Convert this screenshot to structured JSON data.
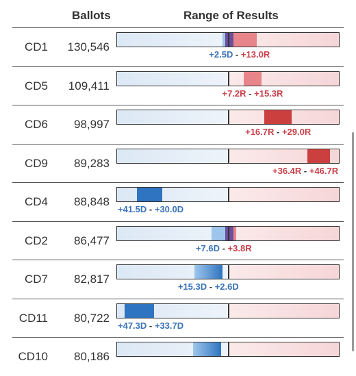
{
  "header": {
    "ballots": "Ballots",
    "range": "Range of Results"
  },
  "colors": {
    "dem": "#2f74c0",
    "rep": "#cb3f3f",
    "dem_text": "#3a73b8",
    "rep_text": "#c8404a",
    "dem_light": "#9ec6ec",
    "rep_light": "#e8858a",
    "tossup": "#6b4f9c"
  },
  "chart_data": {
    "type": "table",
    "columns": [
      "",
      "Ballots",
      "Range of Results"
    ],
    "axis": {
      "center": 0,
      "left": "D",
      "right": "R"
    },
    "rows": [
      {
        "district": "CD1",
        "ballots": "130,546",
        "low": "+2.5D",
        "high": "+13.0R",
        "low_margin": -2.5,
        "high_margin": 13.0
      },
      {
        "district": "CD5",
        "ballots": "109,411",
        "low": "+7.2R",
        "high": "+15.3R",
        "low_margin": 7.2,
        "high_margin": 15.3
      },
      {
        "district": "CD6",
        "ballots": "98,997",
        "low": "+16.7R",
        "high": "+29.0R",
        "low_margin": 16.7,
        "high_margin": 29.0
      },
      {
        "district": "CD9",
        "ballots": "89,283",
        "low": "+36.4R",
        "high": "+46.7R",
        "low_margin": 36.4,
        "high_margin": 46.7
      },
      {
        "district": "CD4",
        "ballots": "88,848",
        "low": "+41.5D",
        "high": "+30.0D",
        "low_margin": -41.5,
        "high_margin": -30.0
      },
      {
        "district": "CD2",
        "ballots": "86,477",
        "low": "+7.6D",
        "high": "+3.8R",
        "low_margin": -7.6,
        "high_margin": 3.8
      },
      {
        "district": "CD7",
        "ballots": "82,817",
        "low": "+15.3D",
        "high": "+2.6D",
        "low_margin": -15.3,
        "high_margin": -2.6
      },
      {
        "district": "CD11",
        "ballots": "80,722",
        "low": "+47.3D",
        "high": "+33.7D",
        "low_margin": -47.3,
        "high_margin": -33.7
      },
      {
        "district": "CD10",
        "ballots": "80,186",
        "low": "",
        "high": "",
        "low_margin": -16.0,
        "high_margin": -3.0
      }
    ]
  }
}
